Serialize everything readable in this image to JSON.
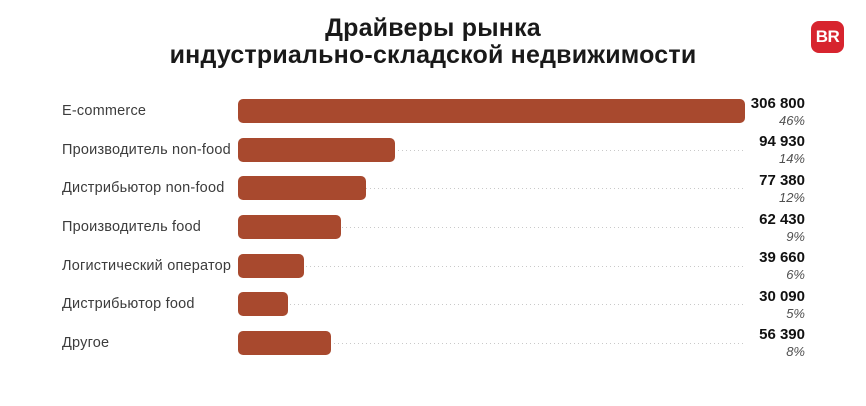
{
  "header": {
    "title_line1": "Драйверы рынка",
    "title_line2": "индустриально-складской недвижимости",
    "logo_text": "BR"
  },
  "colors": {
    "bar": "#a8492e",
    "logo_bg": "#d7242e",
    "leader": "#c9c9c9"
  },
  "chart_data": {
    "type": "bar",
    "orientation": "horizontal",
    "title": "Драйверы рынка индустриально-складской недвижимости",
    "categories": [
      "E-commerce",
      "Производитель non-food",
      "Дистрибьютор non-food",
      "Производитель food",
      "Логистический оператор",
      "Дистрибьютор food",
      "Другое"
    ],
    "values": [
      306800,
      94930,
      77380,
      62430,
      39660,
      30090,
      56390
    ],
    "value_labels": [
      "306 800",
      "94 930",
      "77 380",
      "62 430",
      "39 660",
      "30 090",
      "56 390"
    ],
    "percent_labels": [
      "46%",
      "14%",
      "12%",
      "9%",
      "6%",
      "5%",
      "8%"
    ],
    "xlim": [
      0,
      306800
    ],
    "grid": false,
    "legend": false,
    "notes": "dotted leader lines run from each bar end to the value column"
  }
}
